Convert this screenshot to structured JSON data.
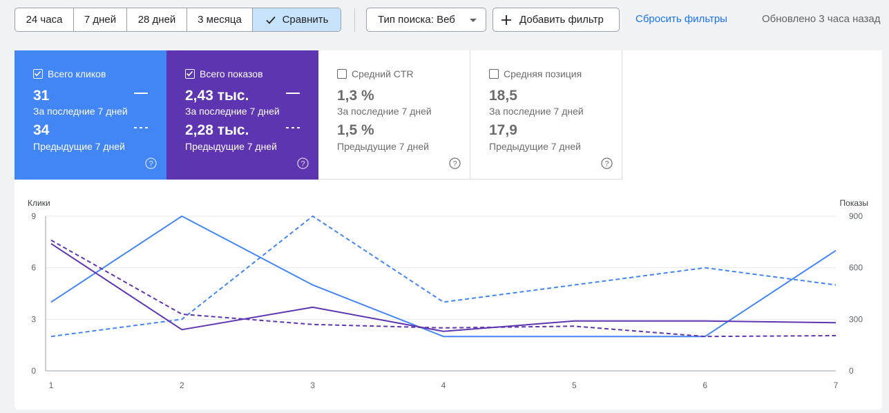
{
  "toolbar": {
    "ranges": [
      {
        "label": "24 часа",
        "active": false
      },
      {
        "label": "7 дней",
        "active": false
      },
      {
        "label": "28 дней",
        "active": false
      },
      {
        "label": "3 месяца",
        "active": false
      },
      {
        "label": "Сравнить",
        "active": true,
        "icon": "check-icon"
      }
    ],
    "search_type_label": "Тип поиска: Веб",
    "add_filter_label": "Добавить фильтр",
    "reset_filters_label": "Сбросить фильтры",
    "updated_text": "Обновлено 3 часа назад"
  },
  "metrics": [
    {
      "label": "Всего кликов",
      "checked": true,
      "current": "31",
      "current_period": "За последние 7 дней",
      "previous": "34",
      "previous_period": "Предыдущие 7 дней",
      "color": "#4285f4"
    },
    {
      "label": "Всего показов",
      "checked": true,
      "current": "2,43 тыс.",
      "current_period": "За последние 7 дней",
      "previous": "2,28 тыс.",
      "previous_period": "Предыдущие 7 дней",
      "color": "#5e35b1"
    },
    {
      "label": "Средний CTR",
      "checked": false,
      "current": "1,3 %",
      "current_period": "За последние 7 дней",
      "previous": "1,5 %",
      "previous_period": "Предыдущие 7 дней"
    },
    {
      "label": "Средняя позиция",
      "checked": false,
      "current": "18,5",
      "current_period": "За последние 7 дней",
      "previous": "17,9",
      "previous_period": "Предыдущие 7 дней"
    }
  ],
  "chart_data": {
    "type": "line",
    "x": [
      1,
      2,
      3,
      4,
      5,
      6,
      7
    ],
    "left_axis_label": "Клики",
    "right_axis_label": "Показы",
    "left_ylim": [
      0,
      9
    ],
    "right_ylim": [
      0,
      900
    ],
    "left_ticks": [
      0,
      3,
      6,
      9
    ],
    "right_ticks": [
      0,
      300,
      600,
      900
    ],
    "grid": true,
    "series": [
      {
        "axis": "left",
        "style": "solid",
        "color": "#4285f4",
        "values": [
          4,
          9,
          5,
          2,
          2,
          2,
          7
        ]
      },
      {
        "axis": "left",
        "style": "dashed",
        "color": "#4285f4",
        "values": [
          2,
          3,
          9,
          4,
          5,
          6,
          5
        ]
      },
      {
        "axis": "right",
        "style": "solid",
        "color": "#5e35b1",
        "values": [
          740,
          240,
          370,
          230,
          290,
          290,
          280
        ]
      },
      {
        "axis": "right",
        "style": "dashed",
        "color": "#5e35b1",
        "values": [
          760,
          330,
          270,
          250,
          260,
          200,
          205
        ]
      }
    ]
  }
}
